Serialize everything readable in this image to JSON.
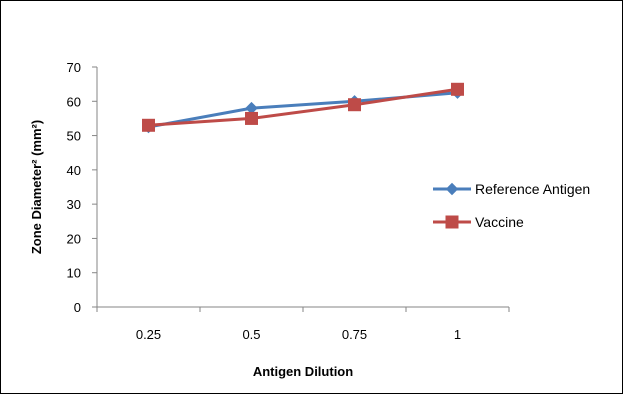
{
  "chart_data": {
    "type": "line",
    "title": "",
    "xlabel": "Antigen Dilution",
    "ylabel": "Zone Diameter² (mm²)",
    "categories": [
      "0.25",
      "0.5",
      "0.75",
      "1"
    ],
    "ylim": [
      0,
      70
    ],
    "yticks": [
      "0",
      "10",
      "20",
      "30",
      "40",
      "50",
      "60",
      "70"
    ],
    "grid": false,
    "legend_position": "right",
    "series": [
      {
        "name": "Reference Antigen",
        "values": [
          52.5,
          58,
          60,
          62.5
        ],
        "color": "#4a7ebb",
        "marker": "diamond"
      },
      {
        "name": "Vaccine",
        "values": [
          53,
          55,
          59,
          63.5
        ],
        "color": "#be4b48",
        "marker": "square"
      }
    ]
  }
}
